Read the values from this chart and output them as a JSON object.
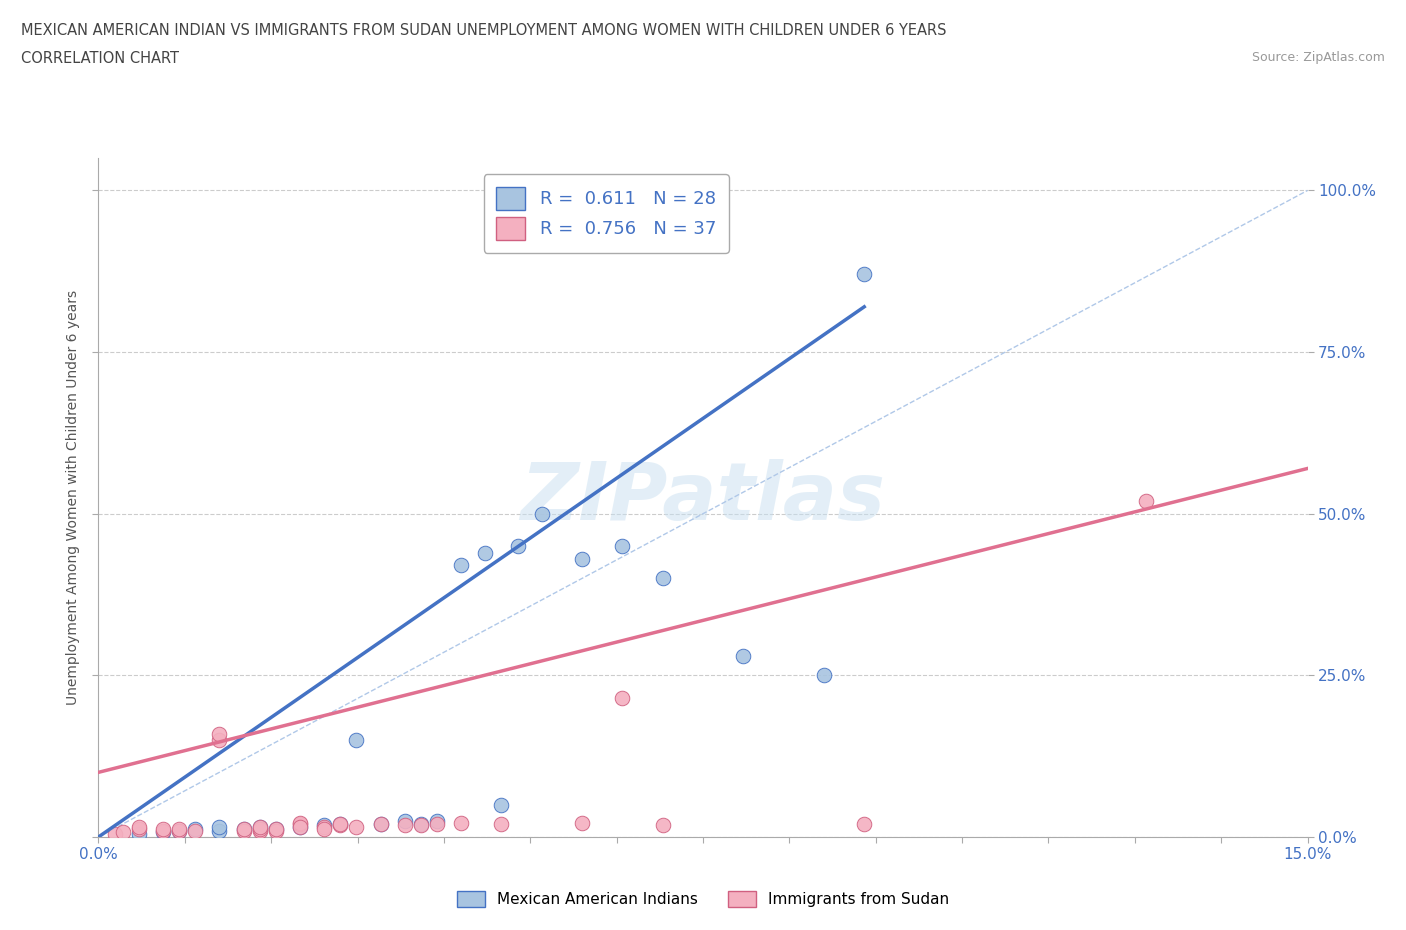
{
  "title_line1": "MEXICAN AMERICAN INDIAN VS IMMIGRANTS FROM SUDAN UNEMPLOYMENT AMONG WOMEN WITH CHILDREN UNDER 6 YEARS",
  "title_line2": "CORRELATION CHART",
  "source": "Source: ZipAtlas.com",
  "ylabel": "Unemployment Among Women with Children Under 6 years",
  "xmin": 0.0,
  "xmax": 0.15,
  "ymin": 0.0,
  "ymax": 1.05,
  "yticks": [
    0.0,
    0.25,
    0.5,
    0.75,
    1.0
  ],
  "ytick_labels": [
    "0.0%",
    "25.0%",
    "50.0%",
    "75.0%",
    "100.0%"
  ],
  "blue_color": "#a8c4e0",
  "pink_color": "#f4b0c0",
  "blue_line_color": "#4472c4",
  "pink_line_color": "#e07090",
  "diagonal_color": "#b0c8e8",
  "watermark": "ZIPatlas",
  "blue_scatter_x": [
    0.005,
    0.008,
    0.01,
    0.012,
    0.015,
    0.015,
    0.018,
    0.02,
    0.022,
    0.025,
    0.028,
    0.03,
    0.032,
    0.035,
    0.038,
    0.04,
    0.042,
    0.045,
    0.048,
    0.05,
    0.052,
    0.055,
    0.06,
    0.065,
    0.07,
    0.08,
    0.09,
    0.095
  ],
  "blue_scatter_y": [
    0.005,
    0.008,
    0.01,
    0.012,
    0.01,
    0.015,
    0.012,
    0.015,
    0.012,
    0.015,
    0.018,
    0.02,
    0.15,
    0.02,
    0.025,
    0.02,
    0.025,
    0.42,
    0.44,
    0.05,
    0.45,
    0.5,
    0.43,
    0.45,
    0.4,
    0.28,
    0.25,
    0.87
  ],
  "pink_scatter_x": [
    0.002,
    0.003,
    0.005,
    0.005,
    0.008,
    0.008,
    0.01,
    0.01,
    0.012,
    0.015,
    0.015,
    0.018,
    0.018,
    0.02,
    0.02,
    0.02,
    0.022,
    0.022,
    0.025,
    0.025,
    0.025,
    0.028,
    0.028,
    0.03,
    0.03,
    0.032,
    0.035,
    0.038,
    0.04,
    0.042,
    0.045,
    0.05,
    0.06,
    0.065,
    0.07,
    0.095,
    0.13
  ],
  "pink_scatter_y": [
    0.005,
    0.008,
    0.012,
    0.015,
    0.01,
    0.012,
    0.01,
    0.012,
    0.01,
    0.15,
    0.16,
    0.01,
    0.012,
    0.01,
    0.012,
    0.015,
    0.01,
    0.012,
    0.02,
    0.022,
    0.015,
    0.015,
    0.012,
    0.018,
    0.02,
    0.015,
    0.02,
    0.018,
    0.018,
    0.02,
    0.022,
    0.02,
    0.022,
    0.215,
    0.018,
    0.02,
    0.52
  ],
  "blue_line_x": [
    0.0,
    0.095
  ],
  "blue_line_y": [
    0.0,
    0.82
  ],
  "pink_line_x": [
    0.0,
    0.15
  ],
  "pink_line_y": [
    0.1,
    0.57
  ]
}
